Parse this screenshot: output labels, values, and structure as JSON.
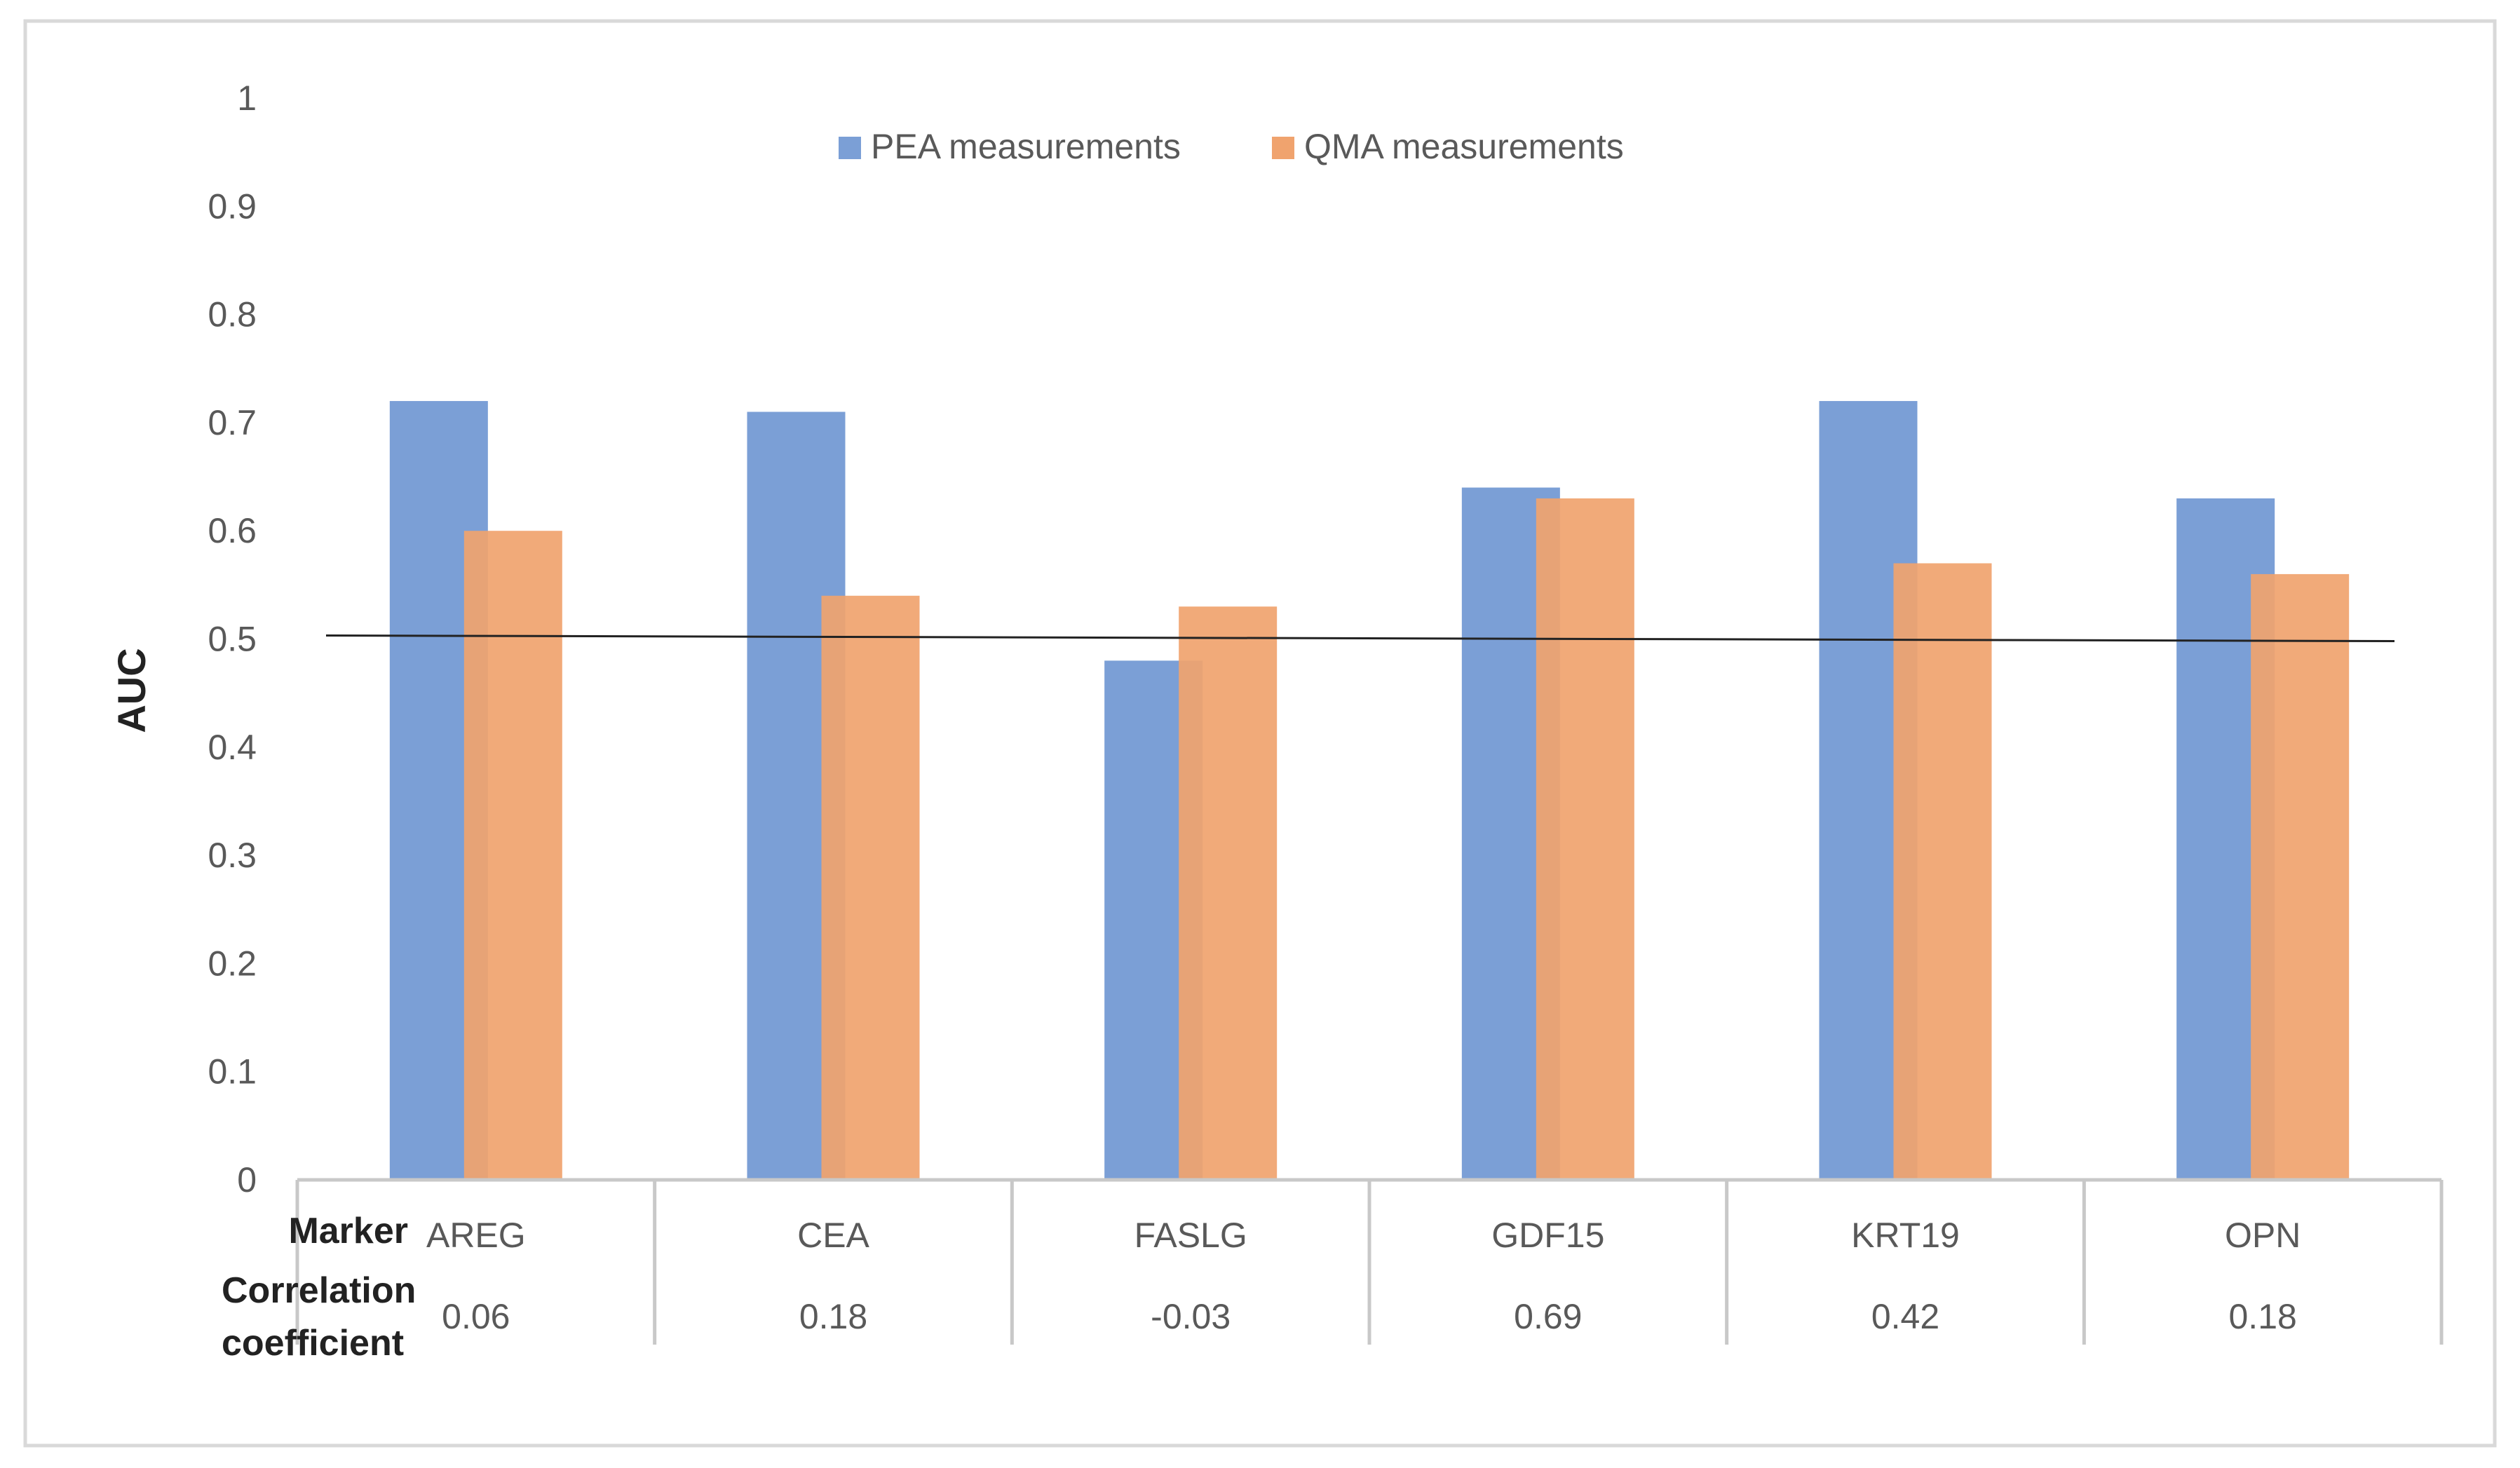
{
  "chart_data": {
    "type": "bar",
    "title": "",
    "xlabel": "",
    "ylabel": "AUC",
    "ylim": [
      0,
      1
    ],
    "yticks": [
      "0",
      "0.1",
      "0.2",
      "0.3",
      "0.4",
      "0.5",
      "0.6",
      "0.7",
      "0.8",
      "0.9",
      "1"
    ],
    "categories": [
      "AREG",
      "CEA",
      "FASLG",
      "GDF15",
      "KRT19",
      "OPN"
    ],
    "series": [
      {
        "name": "PEA measurements",
        "color": "#7b9fd6",
        "values": [
          0.72,
          0.71,
          0.48,
          0.64,
          0.72,
          0.63
        ]
      },
      {
        "name": "QMA measurements",
        "color": "#f0a36e",
        "values": [
          0.6,
          0.54,
          0.53,
          0.63,
          0.57,
          0.56
        ]
      }
    ],
    "reference_line": {
      "value": 0.5,
      "color": "#222222"
    },
    "legend_position": "top-center",
    "table": {
      "row_labels": {
        "marker": "Marker",
        "correlation_line1": "Correlation",
        "correlation_line2": "coefficient"
      },
      "correlation_coefficients": [
        "0.06",
        "0.18",
        "-0.03",
        "0.69",
        "0.42",
        "0.18"
      ]
    }
  }
}
